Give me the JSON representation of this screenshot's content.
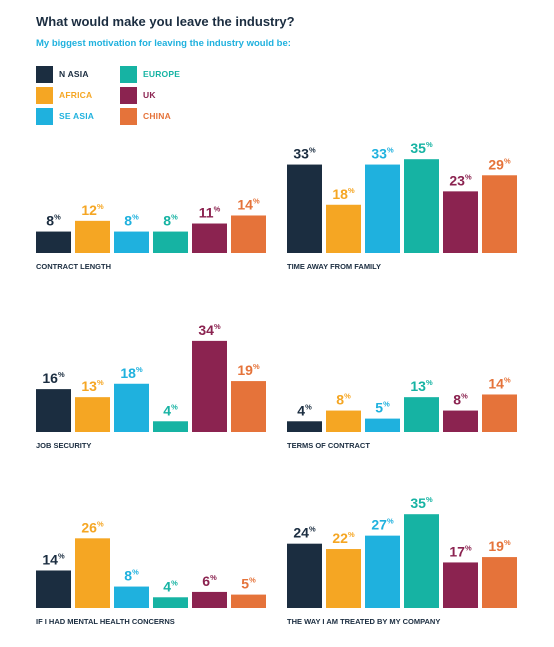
{
  "page": {
    "title": "What would make you leave the industry?",
    "subtitle": "My biggest motivation for leaving the industry would be:"
  },
  "colors": {
    "N ASIA": "#1b2d40",
    "AFRICA": "#f5a623",
    "SE ASIA": "#1fb1de",
    "EUROPE": "#16b3a3",
    "UK": "#8b2350",
    "CHINA": "#e5733a"
  },
  "legend": [
    {
      "label": "N ASIA",
      "color": "#1b2d40"
    },
    {
      "label": "EUROPE",
      "color": "#16b3a3"
    },
    {
      "label": "AFRICA",
      "color": "#f5a623"
    },
    {
      "label": "UK",
      "color": "#8b2350"
    },
    {
      "label": "SE ASIA",
      "color": "#1fb1de"
    },
    {
      "label": "CHINA",
      "color": "#e5733a"
    }
  ],
  "chart_data": [
    {
      "type": "bar",
      "title": "CONTRACT LENGTH",
      "categories": [
        "N ASIA",
        "AFRICA",
        "SE ASIA",
        "EUROPE",
        "UK",
        "CHINA"
      ],
      "values": [
        8,
        12,
        8,
        8,
        11,
        14
      ],
      "unit": "%"
    },
    {
      "type": "bar",
      "title": "TIME AWAY FROM FAMILY",
      "categories": [
        "N ASIA",
        "AFRICA",
        "SE ASIA",
        "EUROPE",
        "UK",
        "CHINA"
      ],
      "values": [
        33,
        18,
        33,
        35,
        23,
        29
      ],
      "unit": "%"
    },
    {
      "type": "bar",
      "title": "JOB SECURITY",
      "categories": [
        "N ASIA",
        "AFRICA",
        "SE ASIA",
        "EUROPE",
        "UK",
        "CHINA"
      ],
      "values": [
        16,
        13,
        18,
        4,
        34,
        19
      ],
      "unit": "%"
    },
    {
      "type": "bar",
      "title": "TERMS OF CONTRACT",
      "categories": [
        "N ASIA",
        "AFRICA",
        "SE ASIA",
        "EUROPE",
        "UK",
        "CHINA"
      ],
      "values": [
        4,
        8,
        5,
        13,
        8,
        14
      ],
      "unit": "%"
    },
    {
      "type": "bar",
      "title": "IF I HAD MENTAL HEALTH CONCERNS",
      "categories": [
        "N ASIA",
        "AFRICA",
        "SE ASIA",
        "EUROPE",
        "UK",
        "CHINA"
      ],
      "values": [
        14,
        26,
        8,
        4,
        6,
        5
      ],
      "unit": "%"
    },
    {
      "type": "bar",
      "title": "THE WAY I AM TREATED BY MY COMPANY",
      "categories": [
        "N ASIA",
        "AFRICA",
        "SE ASIA",
        "EUROPE",
        "UK",
        "CHINA"
      ],
      "values": [
        24,
        22,
        27,
        35,
        17,
        19
      ],
      "unit": "%"
    }
  ]
}
